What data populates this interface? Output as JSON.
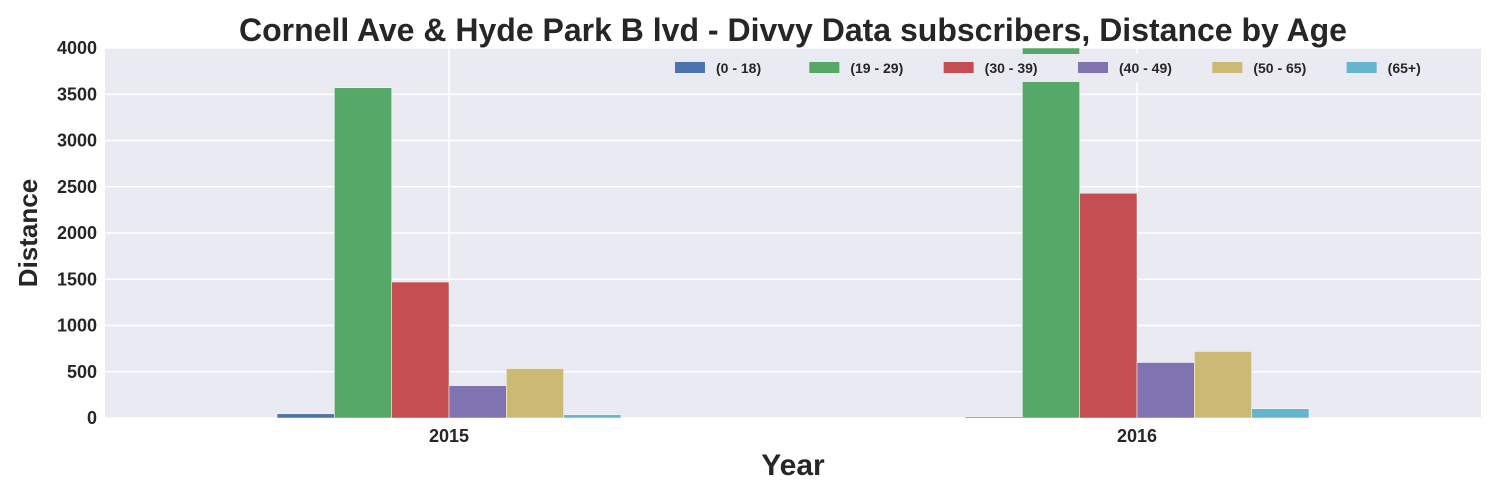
{
  "chart_data": {
    "type": "bar",
    "title": "Cornell Ave & Hyde Park B lvd - Divvy Data subscribers, Distance by Age",
    "xlabel": "Year",
    "ylabel": "Distance",
    "categories": [
      "2015",
      "2016"
    ],
    "ylim": [
      0,
      4000
    ],
    "yticks": [
      "0",
      "500",
      "1000",
      "1500",
      "2000",
      "2500",
      "3000",
      "3500",
      "4000"
    ],
    "grid": true,
    "legend_position": "top-right",
    "series": [
      {
        "name": "(0 - 18)",
        "color": "#4c72b0",
        "values": [
          45,
          12
        ]
      },
      {
        "name": "(19 - 29)",
        "color": "#55a868",
        "values": [
          3570,
          4000
        ]
      },
      {
        "name": "(30 - 39)",
        "color": "#c44e52",
        "values": [
          1470,
          2430
        ]
      },
      {
        "name": "(40 - 49)",
        "color": "#8172b2",
        "values": [
          350,
          600
        ]
      },
      {
        "name": "(50 - 65)",
        "color": "#ccb974",
        "values": [
          535,
          720
        ]
      },
      {
        "name": "(65+)",
        "color": "#64b5cd",
        "values": [
          35,
          100
        ]
      }
    ]
  }
}
